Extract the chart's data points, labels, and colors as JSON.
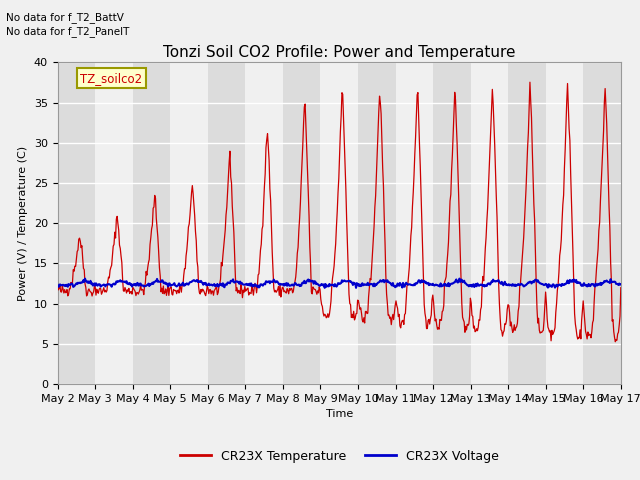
{
  "title": "Tonzi Soil CO2 Profile: Power and Temperature",
  "xlabel": "Time",
  "ylabel": "Power (V) / Temperature (C)",
  "ylim": [
    0,
    40
  ],
  "yticks": [
    0,
    5,
    10,
    15,
    20,
    25,
    30,
    35,
    40
  ],
  "xlim": [
    2,
    17
  ],
  "xtick_labels": [
    "May 2",
    "May 3",
    "May 4",
    "May 5",
    "May 6",
    "May 7",
    "May 8",
    "May 9",
    "May 10",
    "May 11",
    "May 12",
    "May 13",
    "May 14",
    "May 15",
    "May 16",
    "May 17"
  ],
  "legend_entries": [
    "CR23X Temperature",
    "CR23X Voltage"
  ],
  "annotation_lines": [
    "No data for f_T2_BattV",
    "No data for f_T2_PanelT"
  ],
  "legend_label_box": "TZ_soilco2",
  "temp_color": "#cc0000",
  "volt_color": "#0000cc",
  "bg_light": "#f0f0f0",
  "bg_dark": "#dcdcdc",
  "grid_color": "white",
  "title_fontsize": 11,
  "axis_fontsize": 8,
  "tick_fontsize": 8
}
